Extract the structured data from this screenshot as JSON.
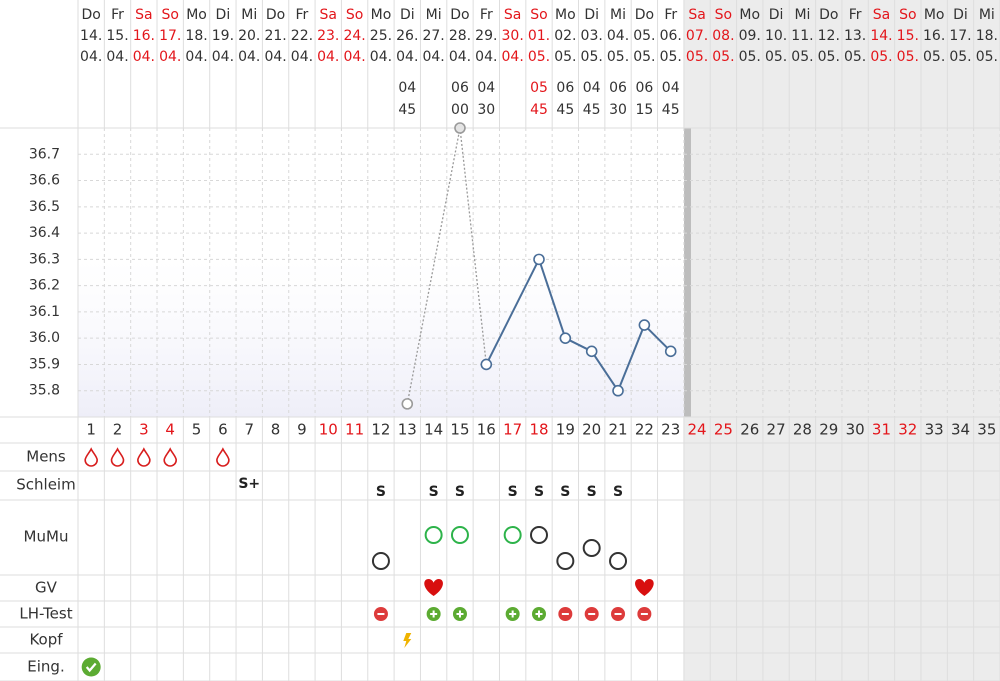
{
  "chart_data": {
    "type": "line",
    "x": [
      1,
      2,
      3,
      4,
      5,
      6,
      7,
      8,
      9,
      10,
      11,
      12,
      13,
      14,
      15,
      16,
      17,
      18,
      19,
      20,
      21,
      22,
      23,
      24,
      25,
      26,
      27,
      28,
      29,
      30,
      31,
      32,
      33,
      34,
      35
    ],
    "columns": [
      {
        "weekday": "Do",
        "date": "14.",
        "month": "04.",
        "weekend": false
      },
      {
        "weekday": "Fr",
        "date": "15.",
        "month": "04.",
        "weekend": false
      },
      {
        "weekday": "Sa",
        "date": "16.",
        "month": "04.",
        "weekend": true
      },
      {
        "weekday": "So",
        "date": "17.",
        "month": "04.",
        "weekend": true
      },
      {
        "weekday": "Mo",
        "date": "18.",
        "month": "04.",
        "weekend": false
      },
      {
        "weekday": "Di",
        "date": "19.",
        "month": "04.",
        "weekend": false
      },
      {
        "weekday": "Mi",
        "date": "20.",
        "month": "04.",
        "weekend": false
      },
      {
        "weekday": "Do",
        "date": "21.",
        "month": "04.",
        "weekend": false
      },
      {
        "weekday": "Fr",
        "date": "22.",
        "month": "04.",
        "weekend": false
      },
      {
        "weekday": "Sa",
        "date": "23.",
        "month": "04.",
        "weekend": true
      },
      {
        "weekday": "So",
        "date": "24.",
        "month": "04.",
        "weekend": true
      },
      {
        "weekday": "Mo",
        "date": "25.",
        "month": "04.",
        "weekend": false
      },
      {
        "weekday": "Di",
        "date": "26.",
        "month": "04.",
        "weekend": false
      },
      {
        "weekday": "Mi",
        "date": "27.",
        "month": "04.",
        "weekend": false
      },
      {
        "weekday": "Do",
        "date": "28.",
        "month": "04.",
        "weekend": false
      },
      {
        "weekday": "Fr",
        "date": "29.",
        "month": "04.",
        "weekend": false
      },
      {
        "weekday": "Sa",
        "date": "30.",
        "month": "04.",
        "weekend": true
      },
      {
        "weekday": "So",
        "date": "01.",
        "month": "05.",
        "weekend": true
      },
      {
        "weekday": "Mo",
        "date": "02.",
        "month": "05.",
        "weekend": false
      },
      {
        "weekday": "Di",
        "date": "03.",
        "month": "05.",
        "weekend": false
      },
      {
        "weekday": "Mi",
        "date": "04.",
        "month": "05.",
        "weekend": false
      },
      {
        "weekday": "Do",
        "date": "05.",
        "month": "05.",
        "weekend": false
      },
      {
        "weekday": "Fr",
        "date": "06.",
        "month": "05.",
        "weekend": false
      },
      {
        "weekday": "Sa",
        "date": "07.",
        "month": "05.",
        "weekend": true
      },
      {
        "weekday": "So",
        "date": "08.",
        "month": "05.",
        "weekend": true
      },
      {
        "weekday": "Mo",
        "date": "09.",
        "month": "05.",
        "weekend": false
      },
      {
        "weekday": "Di",
        "date": "10.",
        "month": "05.",
        "weekend": false
      },
      {
        "weekday": "Mi",
        "date": "11.",
        "month": "05.",
        "weekend": false
      },
      {
        "weekday": "Do",
        "date": "12.",
        "month": "05.",
        "weekend": false
      },
      {
        "weekday": "Fr",
        "date": "13.",
        "month": "05.",
        "weekend": false
      },
      {
        "weekday": "Sa",
        "date": "14.",
        "month": "05.",
        "weekend": true
      },
      {
        "weekday": "So",
        "date": "15.",
        "month": "05.",
        "weekend": true
      },
      {
        "weekday": "Mo",
        "date": "16.",
        "month": "05.",
        "weekend": false
      },
      {
        "weekday": "Di",
        "date": "17.",
        "month": "05.",
        "weekend": false
      },
      {
        "weekday": "Mi",
        "date": "18.",
        "month": "05.",
        "weekend": false
      }
    ],
    "times": [
      null,
      null,
      null,
      null,
      null,
      null,
      null,
      null,
      null,
      null,
      null,
      null,
      {
        "hour": "04",
        "minute": "45"
      },
      null,
      {
        "hour": "06",
        "minute": "00"
      },
      {
        "hour": "04",
        "minute": "30"
      },
      null,
      {
        "hour": "05",
        "minute": "45"
      },
      {
        "hour": "06",
        "minute": "45"
      },
      {
        "hour": "04",
        "minute": "45"
      },
      {
        "hour": "06",
        "minute": "30"
      },
      {
        "hour": "06",
        "minute": "15"
      },
      {
        "hour": "04",
        "minute": "45"
      },
      null,
      null,
      null,
      null,
      null,
      null,
      null,
      null,
      null,
      null,
      null,
      null
    ],
    "series": [
      {
        "color": "#4a6e98",
        "excluded_color": "#9a9a9a",
        "values": [
          null,
          null,
          null,
          null,
          null,
          null,
          null,
          null,
          null,
          null,
          null,
          null,
          35.75,
          null,
          36.8,
          35.9,
          null,
          36.3,
          36.0,
          35.95,
          35.8,
          36.05,
          35.95,
          null,
          null,
          null,
          null,
          null,
          null,
          null,
          null,
          null,
          null,
          null,
          null
        ],
        "excluded": [
          false,
          false,
          false,
          false,
          false,
          false,
          false,
          false,
          false,
          false,
          false,
          false,
          true,
          false,
          true,
          false,
          false,
          false,
          false,
          false,
          false,
          false,
          false,
          false,
          false,
          false,
          false,
          false,
          false,
          false,
          false,
          false,
          false,
          false,
          false
        ]
      }
    ],
    "ylim": [
      35.7,
      36.8
    ],
    "yticks": [
      35.8,
      35.9,
      {
        "value": 36,
        "label": "36.0"
      },
      36.1,
      36.2,
      36.3,
      36.4,
      36.5,
      36.6,
      36.7
    ],
    "grid": true,
    "weekend_color": "#e3161b",
    "rows": [
      {
        "label": "Mens",
        "entries": [
          {
            "day": 1,
            "mark": "drop"
          },
          {
            "day": 2,
            "mark": "drop"
          },
          {
            "day": 3,
            "mark": "drop"
          },
          {
            "day": 4,
            "mark": "drop"
          },
          {
            "day": 6,
            "mark": "drop"
          }
        ]
      },
      {
        "label": "Schleim",
        "entries": [
          {
            "day": 7,
            "text": "S+"
          },
          {
            "day": 12,
            "text": "S"
          },
          {
            "day": 14,
            "text": "S"
          },
          {
            "day": 15,
            "text": "S"
          },
          {
            "day": 17,
            "text": "S"
          },
          {
            "day": 18,
            "text": "S"
          },
          {
            "day": 19,
            "text": "S"
          },
          {
            "day": 20,
            "text": "S"
          },
          {
            "day": 21,
            "text": "S"
          }
        ]
      },
      {
        "label": "MuMu",
        "entries": [
          {
            "day": 12,
            "mark": "circle",
            "level": "low",
            "color": "#333333"
          },
          {
            "day": 14,
            "mark": "circle",
            "level": "high",
            "color": "#2db34a"
          },
          {
            "day": 15,
            "mark": "circle",
            "level": "high",
            "color": "#2db34a"
          },
          {
            "day": 17,
            "mark": "circle",
            "level": "high",
            "color": "#2db34a"
          },
          {
            "day": 18,
            "mark": "circle",
            "level": "high",
            "color": "#333333"
          },
          {
            "day": 19,
            "mark": "circle",
            "level": "low",
            "color": "#333333"
          },
          {
            "day": 20,
            "mark": "circle",
            "level": "mid",
            "color": "#333333"
          },
          {
            "day": 21,
            "mark": "circle",
            "level": "low",
            "color": "#333333"
          }
        ]
      },
      {
        "label": "GV",
        "entries": [
          {
            "day": 14,
            "mark": "heart"
          },
          {
            "day": 22,
            "mark": "heart"
          }
        ]
      },
      {
        "label": "LH-Test",
        "entries": [
          {
            "day": 12,
            "mark": "minus"
          },
          {
            "day": 14,
            "mark": "plus"
          },
          {
            "day": 15,
            "mark": "plus"
          },
          {
            "day": 17,
            "mark": "plus"
          },
          {
            "day": 18,
            "mark": "plus"
          },
          {
            "day": 19,
            "mark": "minus"
          },
          {
            "day": 20,
            "mark": "minus"
          },
          {
            "day": 21,
            "mark": "minus"
          },
          {
            "day": 22,
            "mark": "minus"
          }
        ]
      },
      {
        "label": "Kopf",
        "entries": [
          {
            "day": 13,
            "mark": "bolt"
          }
        ]
      },
      {
        "label": "Eing.",
        "entries": [
          {
            "day": 1,
            "mark": "check"
          }
        ]
      }
    ]
  }
}
